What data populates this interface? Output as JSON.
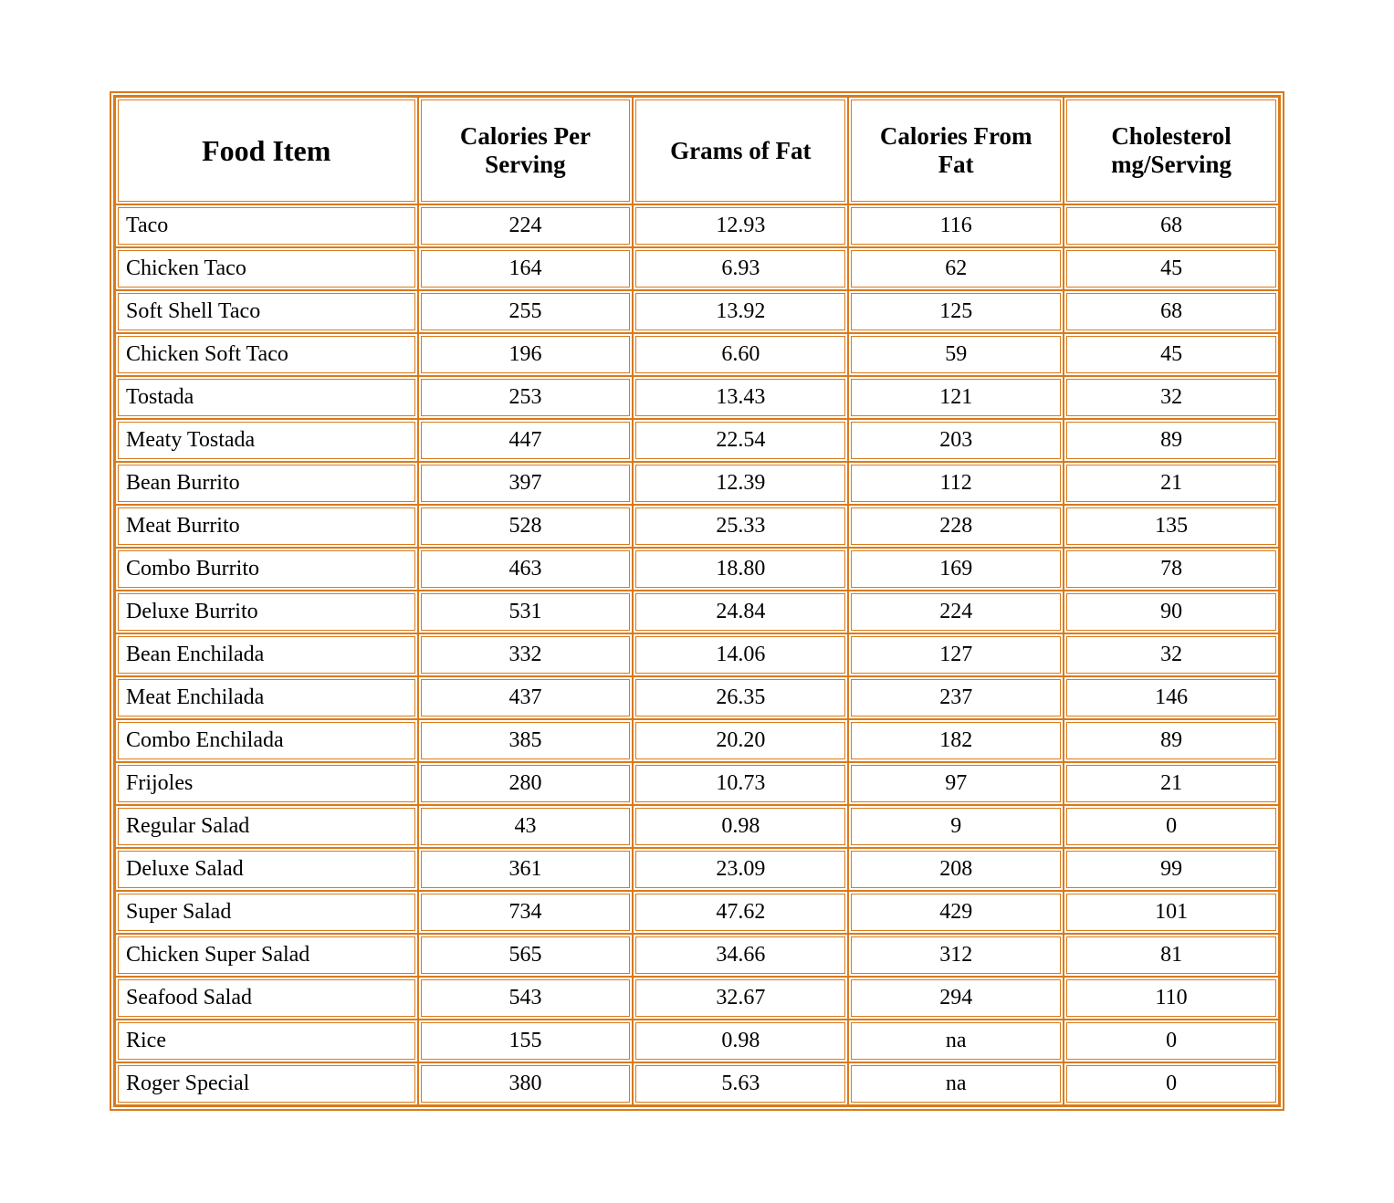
{
  "table": {
    "type": "table",
    "border_color": "#d97a1a",
    "border_style": "double",
    "background_color": "#ffffff",
    "text_color": "#000000",
    "font_family": "Georgia, serif",
    "header_fontsize": 27,
    "header_fontweight": "bold",
    "food_item_header_fontsize": 32,
    "cell_fontsize": 24,
    "column_widths_pct": [
      26,
      18.5,
      18.5,
      18.5,
      18.5
    ],
    "column_alignments": [
      "left",
      "center",
      "center",
      "center",
      "center"
    ],
    "columns": [
      "Food Item",
      "Calories Per Serving",
      "Grams of Fat",
      "Calories From Fat",
      "Cholesterol mg/Serving"
    ],
    "rows": [
      [
        "Taco",
        "224",
        "12.93",
        "116",
        "68"
      ],
      [
        "Chicken Taco",
        "164",
        "6.93",
        "62",
        "45"
      ],
      [
        "Soft Shell Taco",
        "255",
        "13.92",
        "125",
        "68"
      ],
      [
        "Chicken Soft Taco",
        "196",
        "6.60",
        "59",
        "45"
      ],
      [
        "Tostada",
        "253",
        "13.43",
        "121",
        "32"
      ],
      [
        "Meaty Tostada",
        "447",
        "22.54",
        "203",
        "89"
      ],
      [
        "Bean Burrito",
        "397",
        "12.39",
        "112",
        "21"
      ],
      [
        "Meat Burrito",
        "528",
        "25.33",
        "228",
        "135"
      ],
      [
        "Combo Burrito",
        "463",
        "18.80",
        "169",
        "78"
      ],
      [
        "Deluxe Burrito",
        "531",
        "24.84",
        "224",
        "90"
      ],
      [
        "Bean Enchilada",
        "332",
        "14.06",
        "127",
        "32"
      ],
      [
        "Meat Enchilada",
        "437",
        "26.35",
        "237",
        "146"
      ],
      [
        "Combo Enchilada",
        "385",
        "20.20",
        "182",
        "89"
      ],
      [
        "Frijoles",
        "280",
        "10.73",
        "97",
        "21"
      ],
      [
        "Regular Salad",
        "43",
        "0.98",
        "9",
        "0"
      ],
      [
        "Deluxe Salad",
        "361",
        "23.09",
        "208",
        "99"
      ],
      [
        "Super Salad",
        "734",
        "47.62",
        "429",
        "101"
      ],
      [
        "Chicken Super Salad",
        "565",
        "34.66",
        "312",
        "81"
      ],
      [
        "Seafood Salad",
        "543",
        "32.67",
        "294",
        "110"
      ],
      [
        "Rice",
        "155",
        "0.98",
        "na",
        "0"
      ],
      [
        "Roger Special",
        "380",
        "5.63",
        "na",
        "0"
      ]
    ]
  }
}
